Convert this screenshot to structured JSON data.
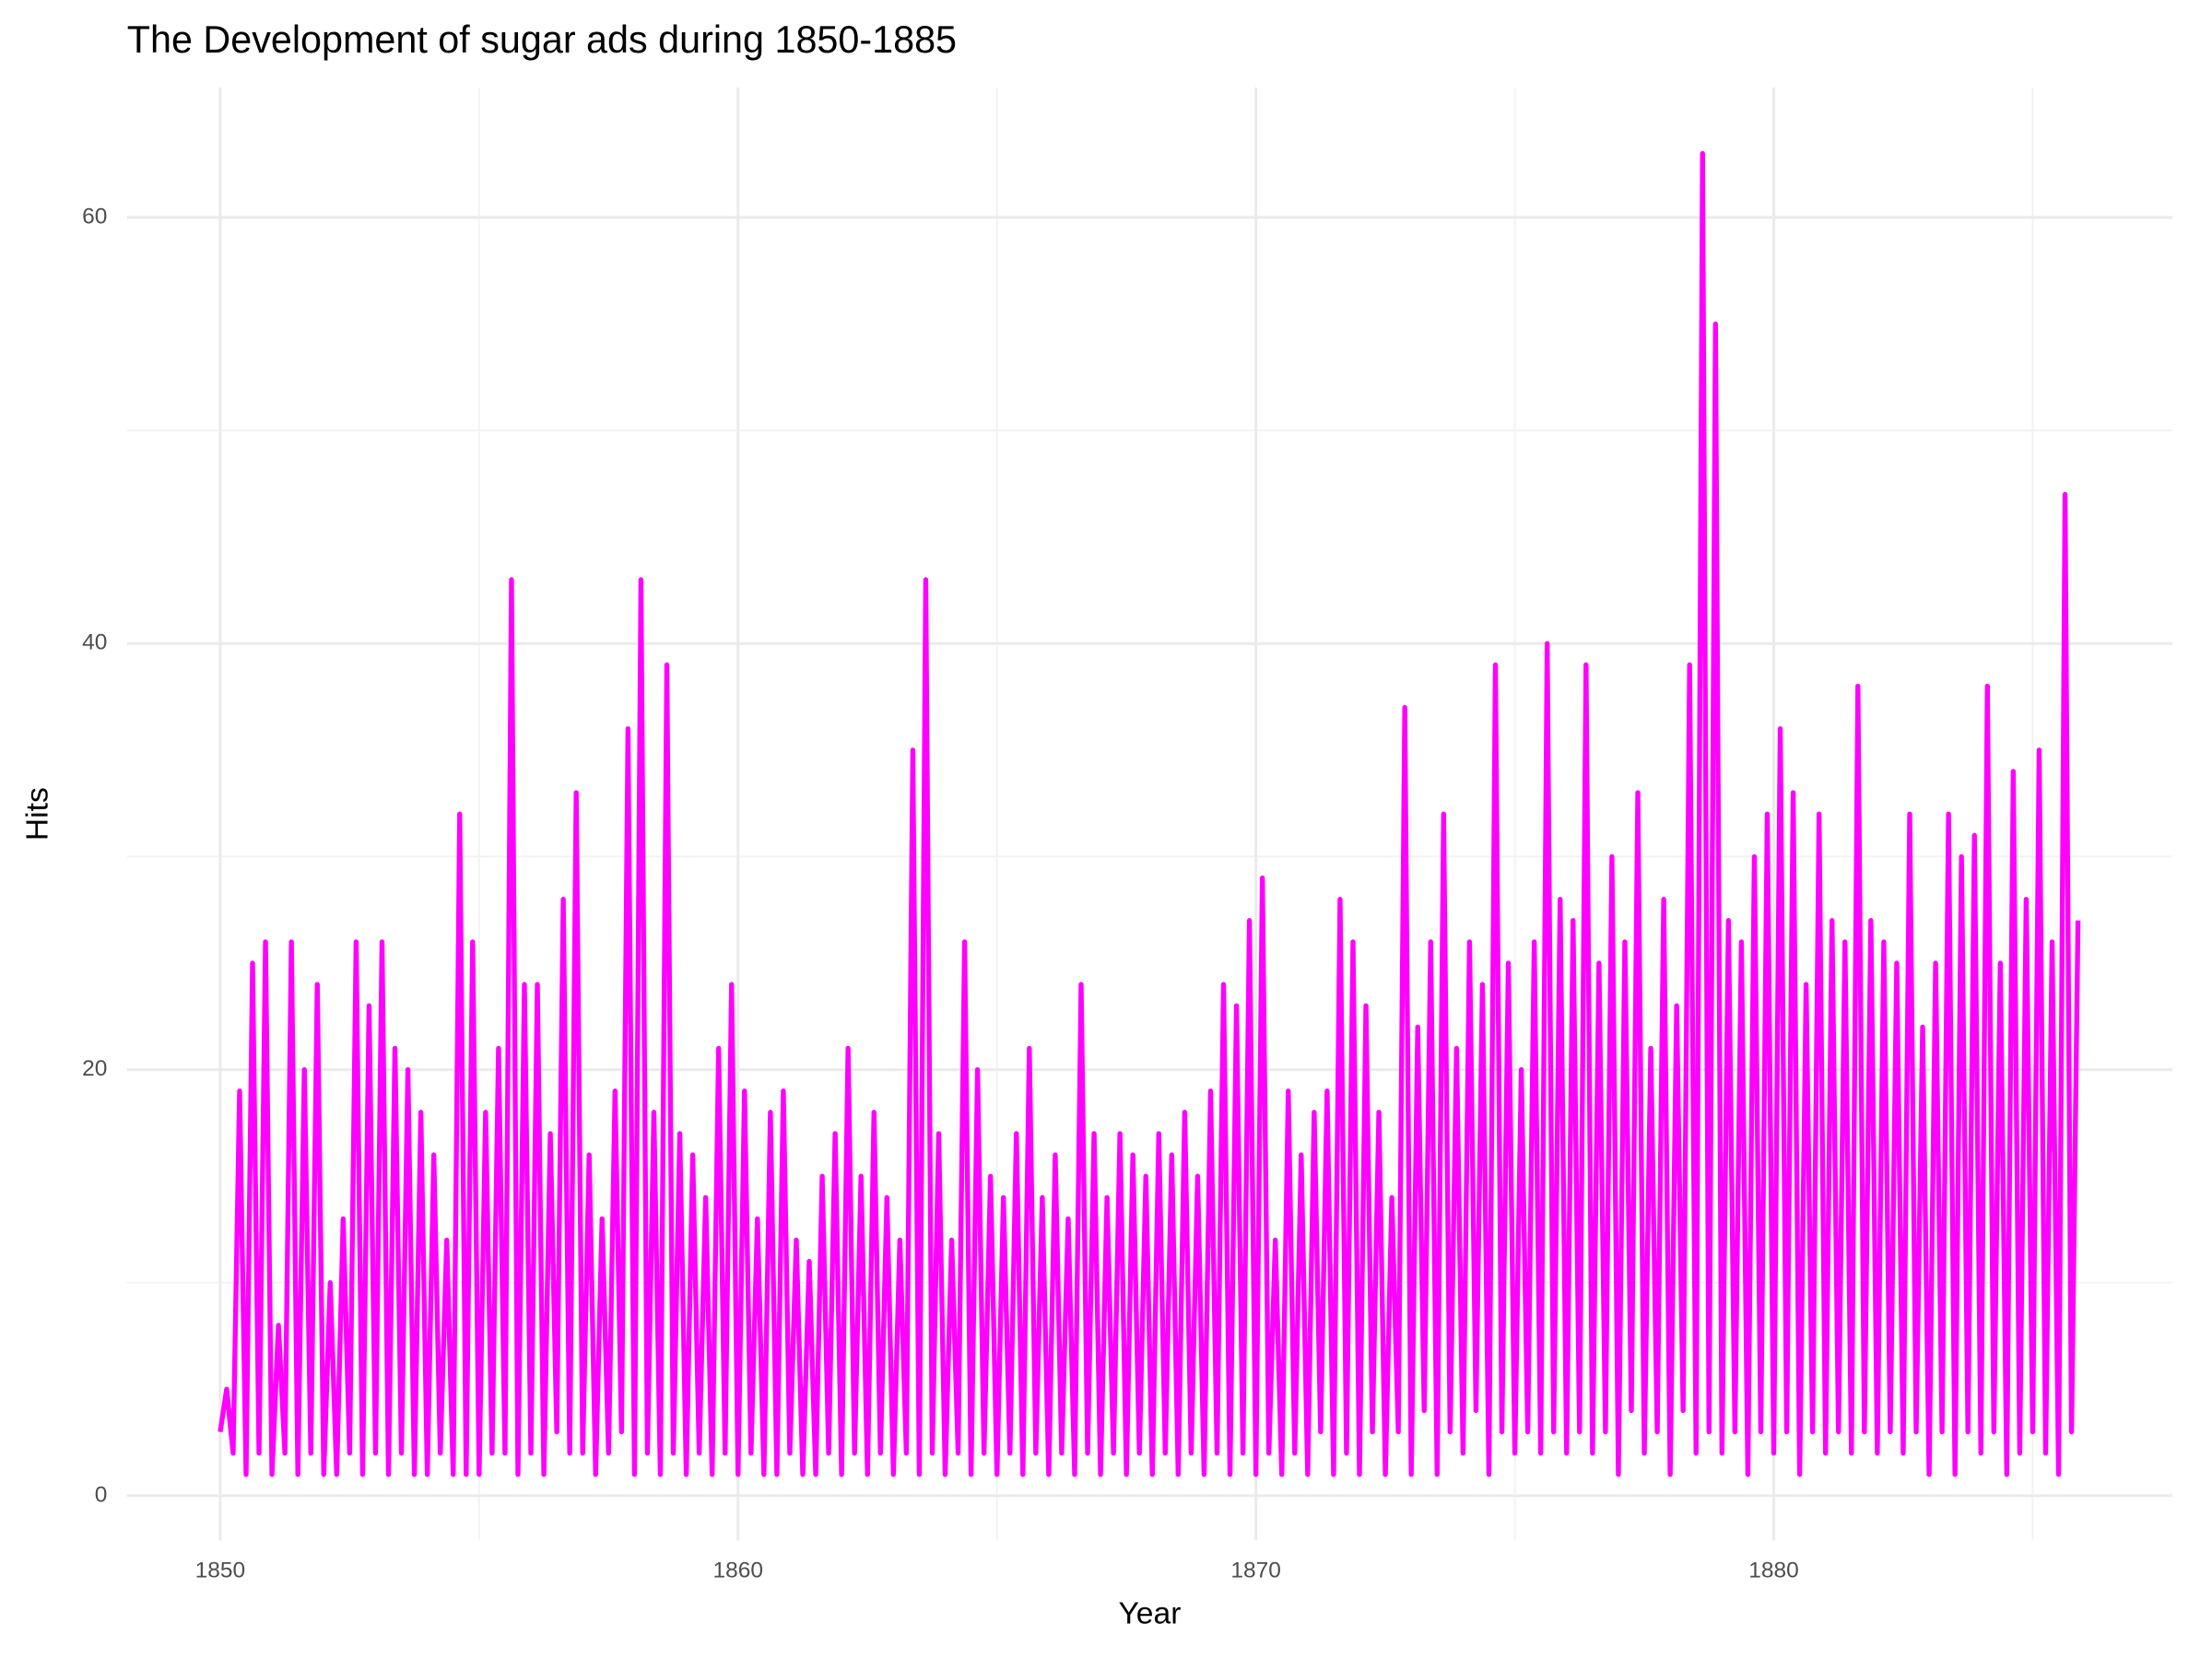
{
  "chart_data": {
    "type": "line",
    "title": "The Development of sugar ads during 1850-1885",
    "x_label": "Year",
    "y_label": "Hits",
    "color": "#ff00ff",
    "xlim": [
      1848.2,
      1887.7
    ],
    "ylim": [
      -2.1,
      66.1
    ],
    "xticks": [
      1850,
      1860,
      1870,
      1880
    ],
    "yticks": [
      0,
      20,
      40,
      60
    ],
    "x_minor_grid": [
      1855,
      1865,
      1875,
      1885
    ],
    "y_minor_grid": [
      10,
      30,
      50
    ],
    "grid": true,
    "x": [
      1850,
      1850.125,
      1850.25,
      1850.375,
      1850.5,
      1850.625,
      1850.75,
      1850.875,
      1851,
      1851.125,
      1851.25,
      1851.375,
      1851.5,
      1851.625,
      1851.75,
      1851.875,
      1852,
      1852.125,
      1852.25,
      1852.375,
      1852.5,
      1852.625,
      1852.75,
      1852.875,
      1853,
      1853.125,
      1853.25,
      1853.375,
      1853.5,
      1853.625,
      1853.75,
      1853.875,
      1854,
      1854.125,
      1854.25,
      1854.375,
      1854.5,
      1854.625,
      1854.75,
      1854.875,
      1855,
      1855.125,
      1855.25,
      1855.375,
      1855.5,
      1855.625,
      1855.75,
      1855.875,
      1856,
      1856.125,
      1856.25,
      1856.375,
      1856.5,
      1856.625,
      1856.75,
      1856.875,
      1857,
      1857.125,
      1857.25,
      1857.375,
      1857.5,
      1857.625,
      1857.75,
      1857.875,
      1858,
      1858.125,
      1858.25,
      1858.375,
      1858.5,
      1858.625,
      1858.75,
      1858.875,
      1859,
      1859.125,
      1859.25,
      1859.375,
      1859.5,
      1859.625,
      1859.75,
      1859.875,
      1860,
      1860.125,
      1860.25,
      1860.375,
      1860.5,
      1860.625,
      1860.75,
      1860.875,
      1861,
      1861.125,
      1861.25,
      1861.375,
      1861.5,
      1861.625,
      1861.75,
      1861.875,
      1862,
      1862.125,
      1862.25,
      1862.375,
      1862.5,
      1862.625,
      1862.75,
      1862.875,
      1863,
      1863.125,
      1863.25,
      1863.375,
      1863.5,
      1863.625,
      1863.75,
      1863.875,
      1864,
      1864.125,
      1864.25,
      1864.375,
      1864.5,
      1864.625,
      1864.75,
      1864.875,
      1865,
      1865.125,
      1865.25,
      1865.375,
      1865.5,
      1865.625,
      1865.75,
      1865.875,
      1866,
      1866.125,
      1866.25,
      1866.375,
      1866.5,
      1866.625,
      1866.75,
      1866.875,
      1867,
      1867.125,
      1867.25,
      1867.375,
      1867.5,
      1867.625,
      1867.75,
      1867.875,
      1868,
      1868.125,
      1868.25,
      1868.375,
      1868.5,
      1868.625,
      1868.75,
      1868.875,
      1869,
      1869.125,
      1869.25,
      1869.375,
      1869.5,
      1869.625,
      1869.75,
      1869.875,
      1870,
      1870.125,
      1870.25,
      1870.375,
      1870.5,
      1870.625,
      1870.75,
      1870.875,
      1871,
      1871.125,
      1871.25,
      1871.375,
      1871.5,
      1871.625,
      1871.75,
      1871.875,
      1872,
      1872.125,
      1872.25,
      1872.375,
      1872.5,
      1872.625,
      1872.75,
      1872.875,
      1873,
      1873.125,
      1873.25,
      1873.375,
      1873.5,
      1873.625,
      1873.75,
      1873.875,
      1874,
      1874.125,
      1874.25,
      1874.375,
      1874.5,
      1874.625,
      1874.75,
      1874.875,
      1875,
      1875.125,
      1875.25,
      1875.375,
      1875.5,
      1875.625,
      1875.75,
      1875.875,
      1876,
      1876.125,
      1876.25,
      1876.375,
      1876.5,
      1876.625,
      1876.75,
      1876.875,
      1877,
      1877.125,
      1877.25,
      1877.375,
      1877.5,
      1877.625,
      1877.75,
      1877.875,
      1878,
      1878.125,
      1878.25,
      1878.375,
      1878.5,
      1878.625,
      1878.75,
      1878.875,
      1879,
      1879.125,
      1879.25,
      1879.375,
      1879.5,
      1879.625,
      1879.75,
      1879.875,
      1880,
      1880.125,
      1880.25,
      1880.375,
      1880.5,
      1880.625,
      1880.75,
      1880.875,
      1881,
      1881.125,
      1881.25,
      1881.375,
      1881.5,
      1881.625,
      1881.75,
      1881.875,
      1882,
      1882.125,
      1882.25,
      1882.375,
      1882.5,
      1882.625,
      1882.75,
      1882.875,
      1883,
      1883.125,
      1883.25,
      1883.375,
      1883.5,
      1883.625,
      1883.75,
      1883.875,
      1884,
      1884.125,
      1884.25,
      1884.375,
      1884.5,
      1884.625,
      1884.75,
      1884.875,
      1885,
      1885.125,
      1885.25,
      1885.375,
      1885.5,
      1885.625,
      1885.75,
      1885.875
    ],
    "values": [
      3,
      5,
      2,
      19,
      1,
      25,
      2,
      26,
      1,
      8,
      2,
      26,
      1,
      20,
      2,
      24,
      1,
      10,
      1,
      13,
      2,
      26,
      1,
      23,
      2,
      26,
      1,
      21,
      2,
      20,
      1,
      18,
      1,
      16,
      2,
      12,
      1,
      32,
      1,
      26,
      1,
      18,
      2,
      21,
      2,
      43,
      1,
      24,
      2,
      24,
      1,
      17,
      3,
      28,
      2,
      33,
      2,
      16,
      1,
      13,
      2,
      19,
      3,
      36,
      1,
      43,
      2,
      18,
      1,
      39,
      2,
      17,
      1,
      16,
      2,
      14,
      1,
      21,
      2,
      24,
      1,
      19,
      2,
      13,
      1,
      18,
      1,
      19,
      2,
      12,
      1,
      11,
      1,
      15,
      2,
      17,
      1,
      21,
      2,
      15,
      1,
      18,
      2,
      14,
      1,
      12,
      2,
      35,
      1,
      43,
      2,
      17,
      1,
      12,
      2,
      26,
      1,
      20,
      2,
      15,
      1,
      14,
      2,
      17,
      1,
      21,
      2,
      14,
      1,
      16,
      2,
      13,
      1,
      24,
      2,
      17,
      1,
      14,
      2,
      17,
      1,
      16,
      2,
      15,
      1,
      17,
      2,
      16,
      1,
      18,
      2,
      15,
      1,
      19,
      2,
      24,
      1,
      23,
      2,
      27,
      1,
      29,
      2,
      12,
      1,
      19,
      2,
      16,
      1,
      18,
      3,
      19,
      1,
      28,
      2,
      26,
      1,
      23,
      3,
      18,
      1,
      14,
      3,
      37,
      1,
      22,
      4,
      26,
      1,
      32,
      3,
      21,
      2,
      26,
      4,
      24,
      1,
      39,
      3,
      25,
      2,
      20,
      3,
      26,
      2,
      40,
      3,
      28,
      2,
      27,
      3,
      39,
      2,
      25,
      3,
      30,
      1,
      26,
      4,
      33,
      2,
      21,
      3,
      28,
      1,
      23,
      4,
      39,
      2,
      63,
      3,
      55,
      2,
      27,
      3,
      26,
      1,
      30,
      3,
      32,
      2,
      36,
      3,
      33,
      1,
      24,
      3,
      32,
      2,
      27,
      3,
      26,
      2,
      38,
      3,
      27,
      2,
      26,
      3,
      25,
      2,
      32,
      3,
      22,
      1,
      25,
      3,
      32,
      1,
      30,
      3,
      31,
      2,
      38,
      3,
      25,
      1,
      34,
      2,
      28,
      3,
      35,
      2,
      26,
      1,
      47,
      3,
      27
    ]
  }
}
